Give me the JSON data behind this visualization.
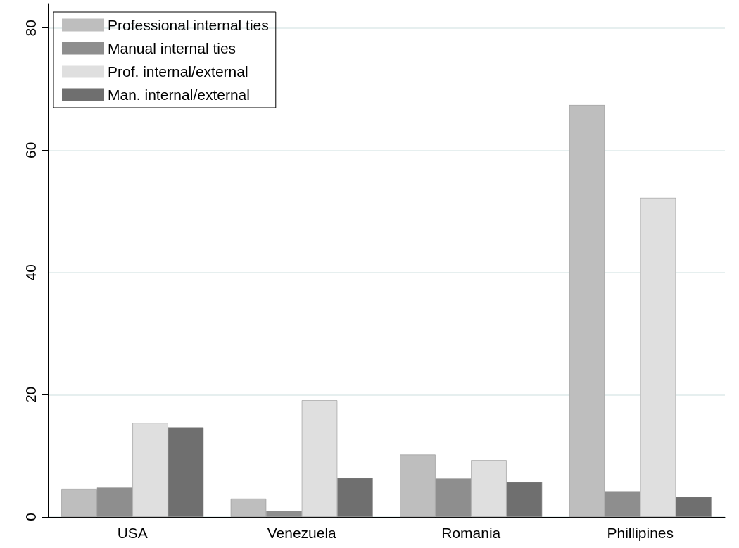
{
  "chart_data": {
    "type": "bar",
    "categories": [
      "USA",
      "Venezuela",
      "Romania",
      "Phillipines"
    ],
    "series": [
      {
        "name": "Professional internal ties",
        "color": "#bebebe",
        "values": [
          4.6,
          3.0,
          10.2,
          67.4
        ]
      },
      {
        "name": "Manual internal ties",
        "color": "#8e8e8e",
        "values": [
          4.8,
          1.0,
          6.3,
          4.2
        ]
      },
      {
        "name": "Prof. internal/external",
        "color": "#dfdfdf",
        "values": [
          15.4,
          19.1,
          9.3,
          52.2
        ]
      },
      {
        "name": "Man. internal/external",
        "color": "#6f6f6f",
        "values": [
          14.7,
          6.4,
          5.7,
          3.3
        ]
      }
    ],
    "ylim": [
      0,
      84
    ],
    "yticks": [
      0,
      20,
      40,
      60,
      80
    ],
    "grid": "y",
    "legend": "top left"
  }
}
